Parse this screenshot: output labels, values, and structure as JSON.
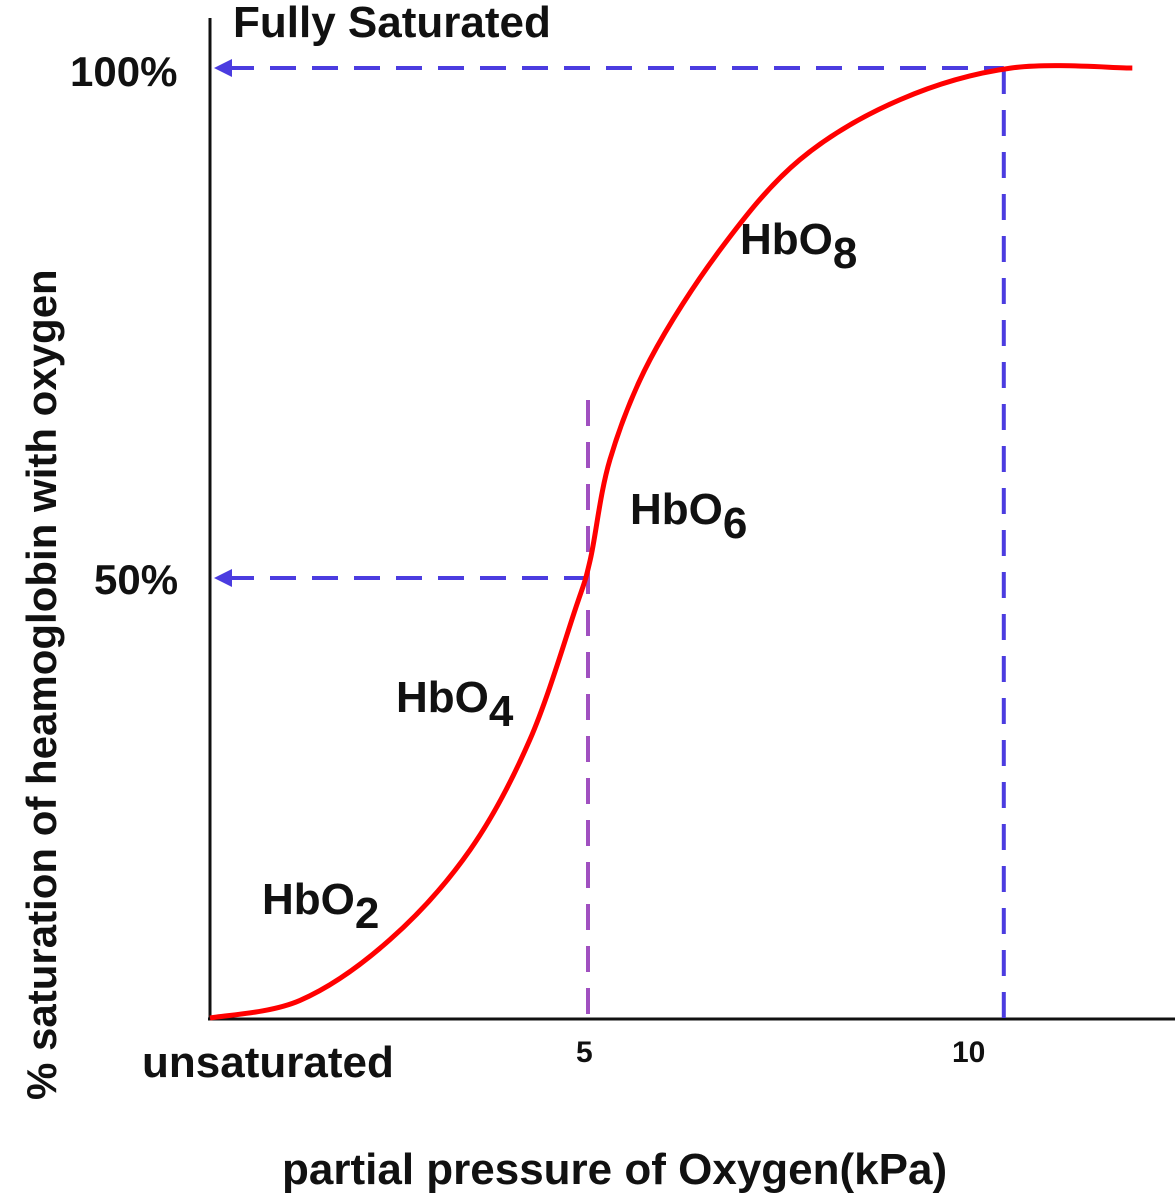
{
  "chart_data": {
    "type": "line",
    "title": "",
    "xlabel": "partial pressure of Oxygen(kPa)",
    "ylabel": "% saturation of heamoglobin with oxygen",
    "x_ticks": [
      "5",
      "10"
    ],
    "y_ticks": [
      "50%",
      "100%"
    ],
    "top_label": "Fully Saturated",
    "bottom_label": "unsaturated",
    "grid": false,
    "series": [
      {
        "color": "#ff0000",
        "x": [
          0,
          1.19,
          2.38,
          3.44,
          4.23,
          4.83,
          5.03,
          5.29,
          5.82,
          6.75,
          7.8,
          9.13,
          10.6,
          12.2
        ],
        "y": [
          0,
          2,
          8.9,
          19.1,
          31.6,
          46.4,
          51.8,
          61.6,
          71.4,
          82.2,
          91,
          96.9,
          100,
          100
        ]
      }
    ],
    "reference_lines": [
      {
        "kind": "horizontal-arrow",
        "y": 100,
        "from_x": 10.5,
        "color": "#4b3ce0"
      },
      {
        "kind": "vertical",
        "x": 10.5,
        "color": "#4b3ce0"
      },
      {
        "kind": "horizontal-arrow",
        "y": 50,
        "from_x": 5,
        "color": "#4b3ce0"
      },
      {
        "kind": "vertical",
        "x": 5,
        "color": "#a050c0"
      }
    ],
    "annotations": [
      {
        "base": "HbO",
        "sub": "2"
      },
      {
        "base": "HbO",
        "sub": "4"
      },
      {
        "base": "HbO",
        "sub": "6"
      },
      {
        "base": "HbO",
        "sub": "8"
      }
    ]
  }
}
